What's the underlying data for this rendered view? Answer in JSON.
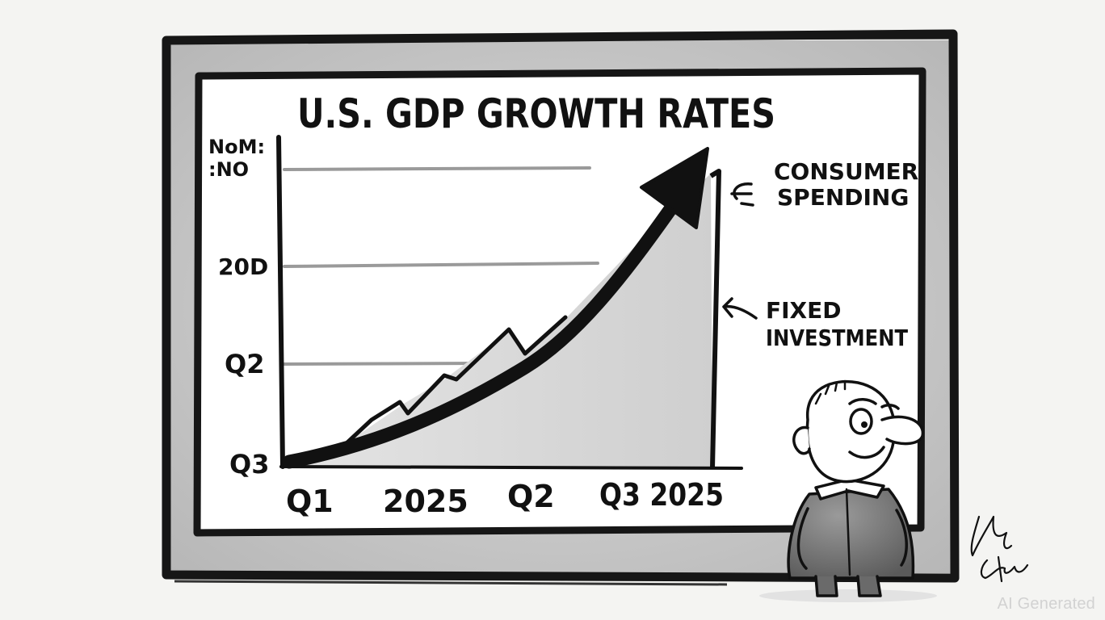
{
  "title": "U.S. GDP GROWTH RATES",
  "y_axis": {
    "top_label_line1": "NoM:",
    "top_label_line2": ":NO",
    "tick_labels": [
      "20D",
      "Q2",
      "Q3"
    ]
  },
  "x_axis": {
    "tick_labels": [
      "Q1",
      "2025",
      "Q2",
      "Q3 2025"
    ]
  },
  "annotations": {
    "consumer_line1": "CONSUMER",
    "consumer_line2": "SPENDING",
    "fixed_line1": "FIXED",
    "fixed_line2": "INVESTMENT"
  },
  "signature": "Kuba",
  "watermark": "AI Generated",
  "colors": {
    "ink": "#111111",
    "frame": "#161616",
    "panel": "#ffffff",
    "gridline": "#9a9a9a",
    "area_fill": "#d9d9d9",
    "background": "#f4f4f2"
  }
}
